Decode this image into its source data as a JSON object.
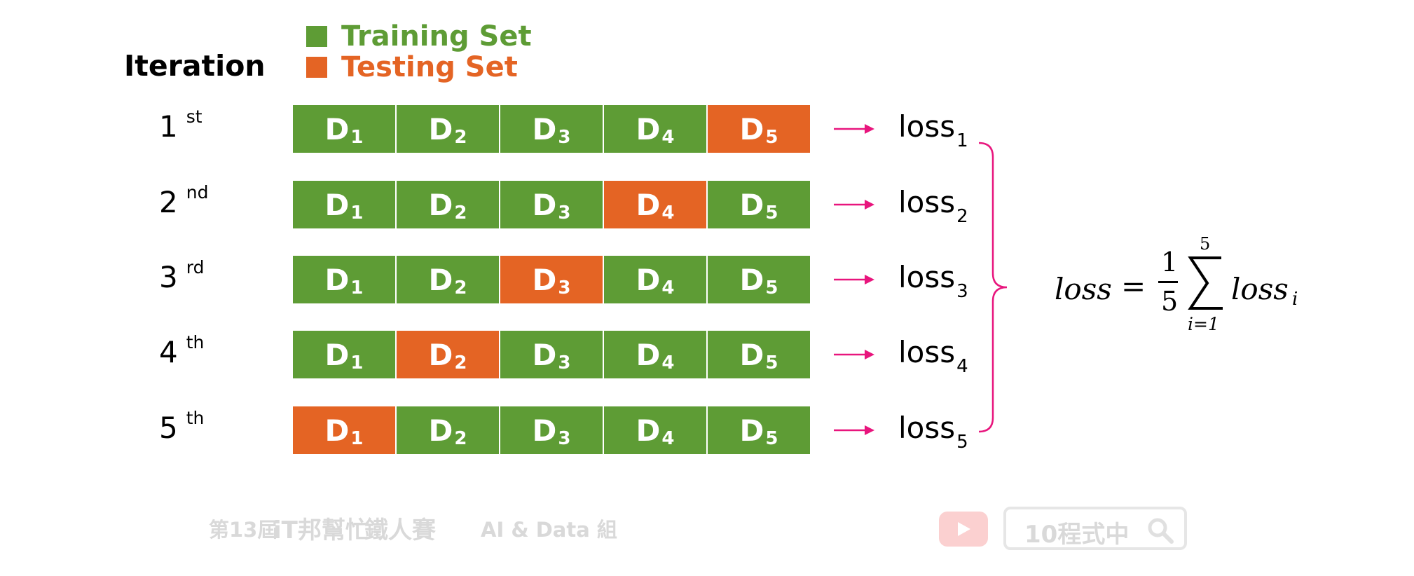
{
  "colors": {
    "training": "#5e9c35",
    "testing": "#e46424",
    "arrow": "#e8157d",
    "brace": "#e8157d"
  },
  "legend": {
    "training_label": "Training Set",
    "testing_label": "Testing Set"
  },
  "iteration_heading": "Iteration",
  "rows": [
    {
      "ordinal": "1",
      "suffix": "st",
      "test_index": 5,
      "loss": "loss",
      "loss_sub": "1"
    },
    {
      "ordinal": "2",
      "suffix": "nd",
      "test_index": 4,
      "loss": "loss",
      "loss_sub": "2"
    },
    {
      "ordinal": "3",
      "suffix": "rd",
      "test_index": 3,
      "loss": "loss",
      "loss_sub": "3"
    },
    {
      "ordinal": "4",
      "suffix": "th",
      "test_index": 2,
      "loss": "loss",
      "loss_sub": "4"
    },
    {
      "ordinal": "5",
      "suffix": "th",
      "test_index": 1,
      "loss": "loss",
      "loss_sub": "5"
    }
  ],
  "block_label": "D",
  "block_subscripts": [
    "1",
    "2",
    "3",
    "4",
    "5"
  ],
  "formula": {
    "lhs": "loss",
    "equals": "=",
    "numerator": "1",
    "denominator": "5",
    "sum_upper": "5",
    "sum_lower": "i=1",
    "term": "loss",
    "term_sub": "i"
  },
  "footer": {
    "event_prefix": "第13屆",
    "event_brand": "iT邦幫忙",
    "event_suffix": "鐵人賽",
    "group": "AI & Data 組",
    "channel": "10程式中"
  }
}
